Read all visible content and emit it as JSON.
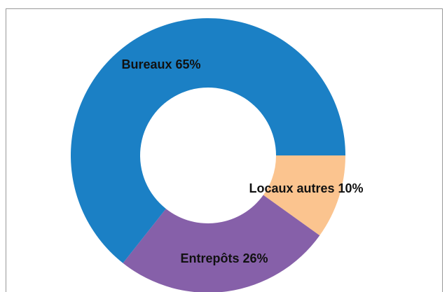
{
  "chart_data": {
    "type": "donut",
    "categories": [
      "Locaux autres",
      "Entrepôts",
      "Bureaux"
    ],
    "values": [
      10,
      26,
      65
    ],
    "value_labels": [
      "10%",
      "26%",
      "65%"
    ],
    "colors": [
      "#fbc48f",
      "#8660a9",
      "#1b80c5"
    ]
  }
}
